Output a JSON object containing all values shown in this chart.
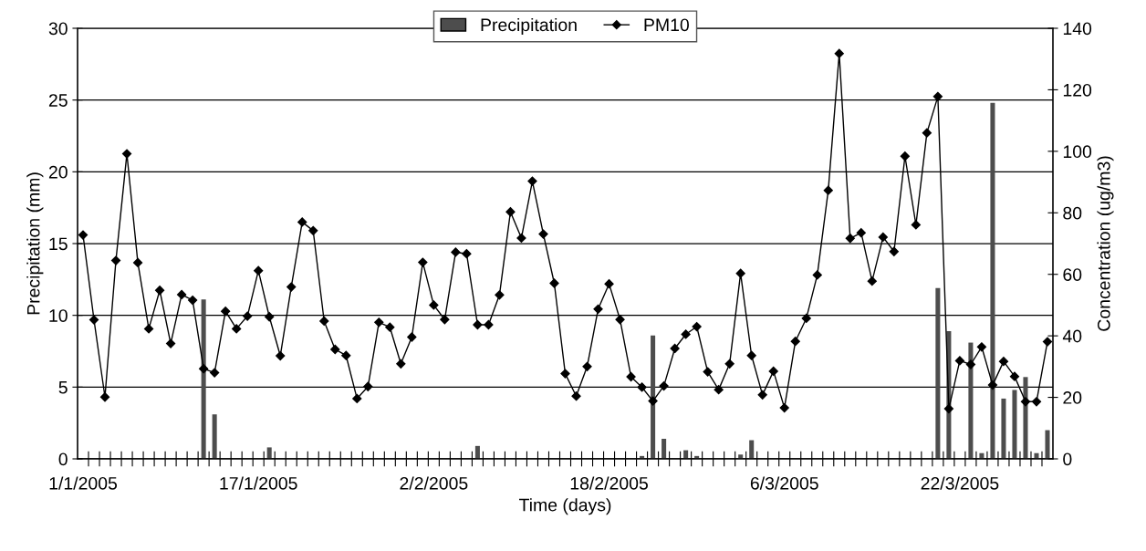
{
  "chart_data": {
    "type": "bar",
    "xlabel": "Time (days)",
    "ylabel": "Precipitation (mm)",
    "y2label": "Concentration (ug/m3)",
    "categories": [
      "1/1/2005",
      null,
      null,
      null,
      null,
      null,
      null,
      null,
      null,
      null,
      null,
      null,
      null,
      null,
      null,
      null,
      "17/1/2005",
      null,
      null,
      null,
      null,
      null,
      null,
      null,
      null,
      null,
      null,
      null,
      null,
      null,
      null,
      null,
      "2/2/2005",
      null,
      null,
      null,
      null,
      null,
      null,
      null,
      null,
      null,
      null,
      null,
      null,
      null,
      null,
      null,
      "18/2/2005",
      null,
      null,
      null,
      null,
      null,
      null,
      null,
      null,
      null,
      null,
      null,
      null,
      null,
      null,
      null,
      "6/3/2005",
      null,
      null,
      null,
      null,
      null,
      null,
      null,
      null,
      null,
      null,
      null,
      null,
      null,
      null,
      null,
      "22/3/2005",
      null,
      null,
      null,
      null,
      null,
      null,
      null,
      null
    ],
    "series": [
      {
        "name": "Precipitation",
        "color": "#4d4d4d",
        "values": [
          0,
          0,
          0,
          0,
          0,
          0,
          0,
          0,
          0,
          0,
          0,
          11.1,
          3.1,
          0,
          0,
          0,
          0,
          0.8,
          0,
          0,
          0,
          0,
          0,
          0,
          0,
          0,
          0,
          0,
          0,
          0,
          0,
          0,
          0,
          0,
          0,
          0,
          0.9,
          0,
          0,
          0,
          0,
          0,
          0,
          0,
          0,
          0,
          0,
          0,
          0,
          0,
          0,
          0.2,
          8.6,
          1.4,
          0,
          0.6,
          0.2,
          0,
          0,
          0,
          0.3,
          1.3,
          0,
          0,
          0,
          0,
          0,
          0,
          0,
          0,
          0,
          0,
          0,
          0,
          0,
          0,
          0,
          0,
          11.9,
          8.9,
          0,
          8.1,
          0.4,
          24.8,
          4.2,
          4.8,
          5.7,
          0.4,
          2
        ]
      },
      {
        "name": "PM10",
        "type": "line",
        "axis": "y2",
        "color": "#000000",
        "marker": "diamond",
        "values": [
          72.8,
          45.2,
          20.1,
          64.5,
          99.2,
          63.8,
          42.3,
          54.8,
          37.5,
          53.4,
          51.6,
          29.3,
          28,
          48,
          42.3,
          46.4,
          61.2,
          46.2,
          33.5,
          55.9,
          77,
          74.2,
          44.8,
          35.6,
          33.6,
          19.6,
          23.5,
          44.4,
          42.8,
          30.9,
          39.6,
          63.9,
          50,
          45.3,
          67.2,
          66.7,
          43.6,
          43.6,
          53.3,
          80.3,
          71.8,
          90.3,
          73.1,
          57.1,
          27.7,
          20.4,
          30,
          48.7,
          56.9,
          45.3,
          26.7,
          23.3,
          18.8,
          23.7,
          35.9,
          40.5,
          43,
          28.3,
          22.5,
          30.9,
          60.3,
          33.6,
          20.8,
          28.5,
          16.6,
          38.2,
          45.7,
          59.8,
          87.3,
          131.8,
          71.7,
          73.5,
          57.8,
          72.1,
          67.4,
          98.4,
          76.1,
          106,
          117.8,
          16.3,
          31.9,
          30.7,
          36.4,
          24,
          31.7,
          26.8,
          18.6,
          18.6,
          38.1
        ]
      }
    ],
    "ylim": [
      0,
      30
    ],
    "yticks": [
      0,
      5,
      10,
      15,
      20,
      25,
      30
    ],
    "y2lim": [
      0,
      140
    ],
    "y2ticks": [
      0,
      20,
      40,
      60,
      80,
      100,
      120,
      140
    ],
    "grid": "y",
    "legend": "top"
  }
}
